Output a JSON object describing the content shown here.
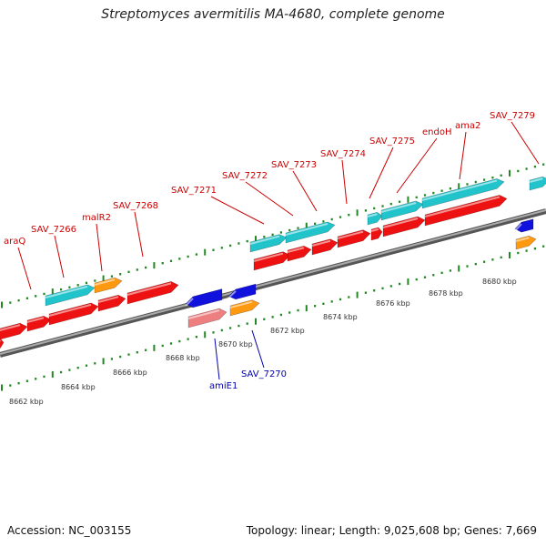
{
  "title": "Streptomyces avermitilis MA-4680, complete genome",
  "footer": {
    "accession_label": "Accession:",
    "accession": "NC_003155",
    "topology_label": "Topology:",
    "topology": "linear",
    "length_label": "Length:",
    "length": "9,025,608 bp",
    "genes_label": "Genes:",
    "genes": "7,669"
  },
  "colors": {
    "gene_red": "#ee1111",
    "gene_cyan": "#22c4cc",
    "gene_orange": "#ff9910",
    "gene_blue": "#1111dd",
    "gene_pink": "#ee7f80",
    "label_red": "#cc0000",
    "label_blue": "#0000aa",
    "tick_green": "#228822",
    "backbone": "#888888"
  },
  "scale_labels": [
    "8662 kbp",
    "8664 kbp",
    "8666 kbp",
    "8668 kbp",
    "8670 kbp",
    "8672 kbp",
    "8674 kbp",
    "8676 kbp",
    "8678 kbp",
    "8680 kbp"
  ],
  "upper_labels": [
    "araQ",
    "SAV_7266",
    "malR2",
    "SAV_7268",
    "SAV_7271",
    "SAV_7272",
    "SAV_7273",
    "SAV_7274",
    "SAV_7275",
    "endoH",
    "ama2",
    "SAV_7279"
  ],
  "lower_labels": [
    "amiE1",
    "SAV_7270"
  ]
}
